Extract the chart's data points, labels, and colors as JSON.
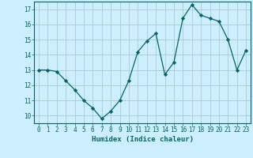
{
  "x": [
    0,
    1,
    2,
    3,
    4,
    5,
    6,
    7,
    8,
    9,
    10,
    11,
    12,
    13,
    14,
    15,
    16,
    17,
    18,
    19,
    20,
    21,
    22,
    23
  ],
  "y": [
    13,
    13,
    12.9,
    12.3,
    11.7,
    11.0,
    10.5,
    9.8,
    10.3,
    11.0,
    12.3,
    14.2,
    14.9,
    15.4,
    12.7,
    13.5,
    16.4,
    17.3,
    16.6,
    16.4,
    16.2,
    15.0,
    13.0,
    14.3
  ],
  "xlabel": "Humidex (Indice chaleur)",
  "xlim": [
    -0.5,
    23.5
  ],
  "ylim": [
    9.5,
    17.5
  ],
  "yticks": [
    10,
    11,
    12,
    13,
    14,
    15,
    16,
    17
  ],
  "xticks": [
    0,
    1,
    2,
    3,
    4,
    5,
    6,
    7,
    8,
    9,
    10,
    11,
    12,
    13,
    14,
    15,
    16,
    17,
    18,
    19,
    20,
    21,
    22,
    23
  ],
  "line_color": "#006666",
  "marker_color": "#006666",
  "bg_color": "#cceeff",
  "grid_color": "#aacccc",
  "tick_label_color": "#006666",
  "xlabel_color": "#006666",
  "tick_fontsize": 5.5,
  "xlabel_fontsize": 6.5
}
